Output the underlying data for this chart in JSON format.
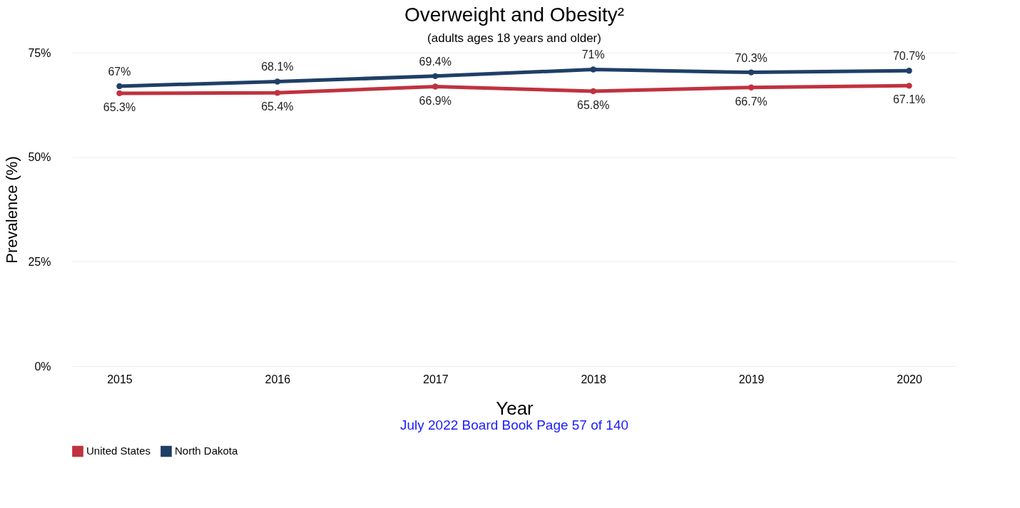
{
  "chart_data": {
    "type": "line",
    "title": "Overweight and Obesity²",
    "subtitle": "(adults ages 18 years and older)",
    "xlabel": "Year",
    "ylabel": "Prevalence (%)",
    "categories": [
      "2015",
      "2016",
      "2017",
      "2018",
      "2019",
      "2020"
    ],
    "series": [
      {
        "name": "United States",
        "color": "#c0323f",
        "values": [
          65.3,
          65.4,
          66.9,
          65.8,
          66.7,
          67.1
        ],
        "value_labels": [
          "65.3%",
          "65.4%",
          "66.9%",
          "65.8%",
          "66.7%",
          "67.1%"
        ]
      },
      {
        "name": "North Dakota",
        "color": "#1f3f66",
        "values": [
          67,
          68.1,
          69.4,
          71,
          70.3,
          70.7
        ],
        "value_labels": [
          "67%",
          "68.1%",
          "69.4%",
          "71%",
          "70.3%",
          "70.7%"
        ]
      }
    ],
    "ylim": [
      0,
      75
    ],
    "yticks": [
      {
        "value": 0,
        "label": "0%"
      },
      {
        "value": 25,
        "label": "25%"
      },
      {
        "value": 50,
        "label": "50%"
      },
      {
        "value": 75,
        "label": "75%"
      }
    ],
    "grid": "y",
    "legend": "bottom",
    "marker": "circle",
    "line_style": "solid",
    "annotations": [
      "July 2022 Board Book Page 57 of 140"
    ]
  }
}
